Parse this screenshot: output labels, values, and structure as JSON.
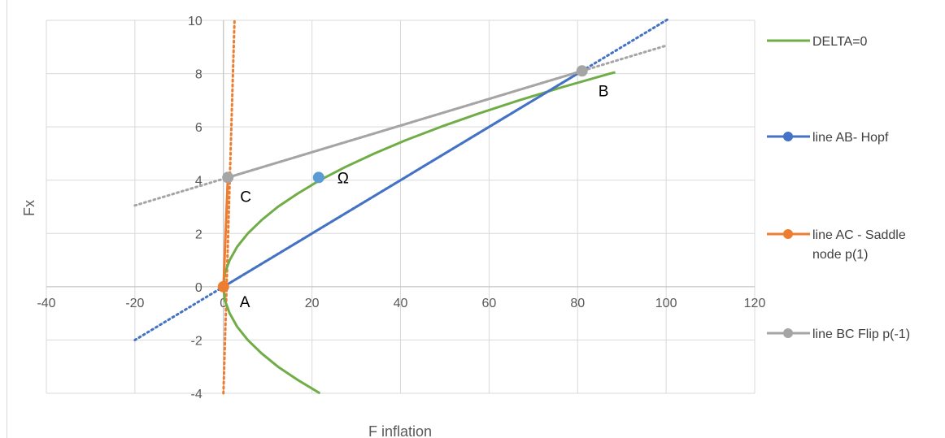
{
  "chart_data": {
    "type": "scatter",
    "title": "",
    "xlabel": "F inflation",
    "ylabel": "Fx",
    "xlim": [
      -40,
      120
    ],
    "ylim": [
      -4,
      10
    ],
    "x_ticks": [
      "-40",
      "-20",
      "0",
      "20",
      "40",
      "60",
      "80",
      "100",
      "120"
    ],
    "y_ticks": [
      "-4",
      "-2",
      "0",
      "2",
      "4",
      "6",
      "8",
      "10"
    ],
    "grid": true,
    "legend_position": "right",
    "series": [
      {
        "name": "DELTA=0",
        "color": "#70AD47",
        "kind": "curve",
        "points": [
          [
            21.8,
            -4
          ],
          [
            16.8,
            -3.5
          ],
          [
            12.3,
            -3
          ],
          [
            8.6,
            -2.5
          ],
          [
            5.5,
            -2
          ],
          [
            3.1,
            -1.5
          ],
          [
            1.4,
            -1
          ],
          [
            0.3,
            -0.5
          ],
          [
            0,
            0
          ],
          [
            0.3,
            0.5
          ],
          [
            1.4,
            1
          ],
          [
            3.1,
            1.5
          ],
          [
            5.5,
            2
          ],
          [
            8.6,
            2.5
          ],
          [
            12.3,
            3
          ],
          [
            16.8,
            3.5
          ],
          [
            21.8,
            4
          ],
          [
            27.6,
            4.5
          ],
          [
            34.1,
            5
          ],
          [
            41.2,
            5.5
          ],
          [
            49.1,
            6
          ],
          [
            57.6,
            6.5
          ],
          [
            66.8,
            7
          ],
          [
            76.7,
            7.5
          ],
          [
            87.3,
            8
          ],
          [
            88.5,
            8.05
          ]
        ]
      },
      {
        "name": "line AB- Hopf",
        "color": "#4472C4",
        "kind": "segment",
        "points": [
          [
            0,
            0
          ],
          [
            81,
            8.1
          ]
        ],
        "extension": [
          [
            -20,
            -2
          ],
          [
            100.5,
            10.05
          ]
        ]
      },
      {
        "name": "line AC - Saddle node p(1)",
        "color": "#ED7D31",
        "kind": "segment",
        "points": [
          [
            0,
            0
          ],
          [
            1,
            4.1
          ]
        ],
        "extension": [
          [
            0,
            -4
          ],
          [
            2.5,
            10
          ]
        ]
      },
      {
        "name": "line BC Flip p(-1)",
        "color": "#A5A5A5",
        "kind": "segment",
        "points": [
          [
            1,
            4.1
          ],
          [
            81,
            8.1
          ]
        ],
        "extension": [
          [
            -20,
            3.05
          ],
          [
            100,
            9.05
          ]
        ]
      }
    ],
    "points": [
      {
        "label": "A",
        "x": 0,
        "y": 0,
        "color": "#ED7D31"
      },
      {
        "label": "B",
        "x": 81,
        "y": 8.1,
        "color": "#A5A5A5"
      },
      {
        "label": "C",
        "x": 1,
        "y": 4.1,
        "color": "#A5A5A5"
      },
      {
        "label": "Ω",
        "x": 21.5,
        "y": 4.1,
        "color": "#5B9BD5"
      }
    ]
  },
  "legend": {
    "delta": "DELTA=0",
    "ab": "line AB- Hopf",
    "ac_line1": "line AC - Saddle",
    "ac_line2": "node p(1)",
    "bc": "line BC Flip p(-1)"
  }
}
